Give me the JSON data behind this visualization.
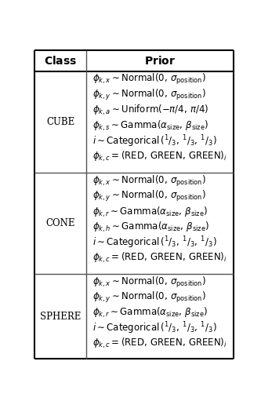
{
  "col_headers": [
    "Class",
    "Prior"
  ],
  "rows": [
    {
      "class": "CUBE",
      "priors": [
        "$\\phi_{k,x} \\sim \\mathrm{Normal}(0,\\, \\sigma_{\\mathrm{position}})$",
        "$\\phi_{k,y} \\sim \\mathrm{Normal}(0,\\, \\sigma_{\\mathrm{position}})$",
        "$\\phi_{k,a} \\sim \\mathrm{Uniform}({-}\\pi/4,\\, \\pi/4)$",
        "$\\phi_{k,s} \\sim \\mathrm{Gamma}(\\alpha_{\\mathrm{size}},\\, \\beta_{\\mathrm{size}})$",
        "$i \\sim \\mathrm{Categorical}\\,(^{1}/_{3},\\, ^{1}/_{3},\\, ^{1}/_{3})$",
        "$\\phi_{k,c} = (\\mathrm{RED,\\, GREEN,\\, GREEN})_i$"
      ]
    },
    {
      "class": "CONE",
      "priors": [
        "$\\phi_{k,x} \\sim \\mathrm{Normal}(0,\\, \\sigma_{\\mathrm{position}})$",
        "$\\phi_{k,y} \\sim \\mathrm{Normal}(0,\\, \\sigma_{\\mathrm{position}})$",
        "$\\phi_{k,r} \\sim \\mathrm{Gamma}(\\alpha_{\\mathrm{size}},\\, \\beta_{\\mathrm{size}})$",
        "$\\phi_{k,h} \\sim \\mathrm{Gamma}(\\alpha_{\\mathrm{size}},\\, \\beta_{\\mathrm{size}})$",
        "$i \\sim \\mathrm{Categorical}\\,(^{1}/_{3},\\, ^{1}/_{3},\\, ^{1}/_{3})$",
        "$\\phi_{k,c} = (\\mathrm{RED,\\, GREEN,\\, GREEN})_i$"
      ]
    },
    {
      "class": "SPHERE",
      "priors": [
        "$\\phi_{k,x} \\sim \\mathrm{Normal}(0,\\, \\sigma_{\\mathrm{position}})$",
        "$\\phi_{k,y} \\sim \\mathrm{Normal}(0,\\, \\sigma_{\\mathrm{position}})$",
        "$\\phi_{k,r} \\sim \\mathrm{Gamma}(\\alpha_{\\mathrm{size}},\\, \\beta_{\\mathrm{size}})$",
        "$i \\sim \\mathrm{Categorical}\\,(^{1}/_{3},\\, ^{1}/_{3},\\, ^{1}/_{3})$",
        "$\\phi_{k,c} = (\\mathrm{RED,\\, GREEN,\\, GREEN})_i$"
      ]
    }
  ],
  "bg_color": "#ffffff",
  "line_color": "#555555",
  "header_line_color": "#000000",
  "text_color": "#000000",
  "header_fontsize": 10,
  "cell_fontsize": 8.5,
  "class_fontsize": 8.5,
  "fig_width": 3.33,
  "fig_height": 5.16,
  "dpi": 100
}
